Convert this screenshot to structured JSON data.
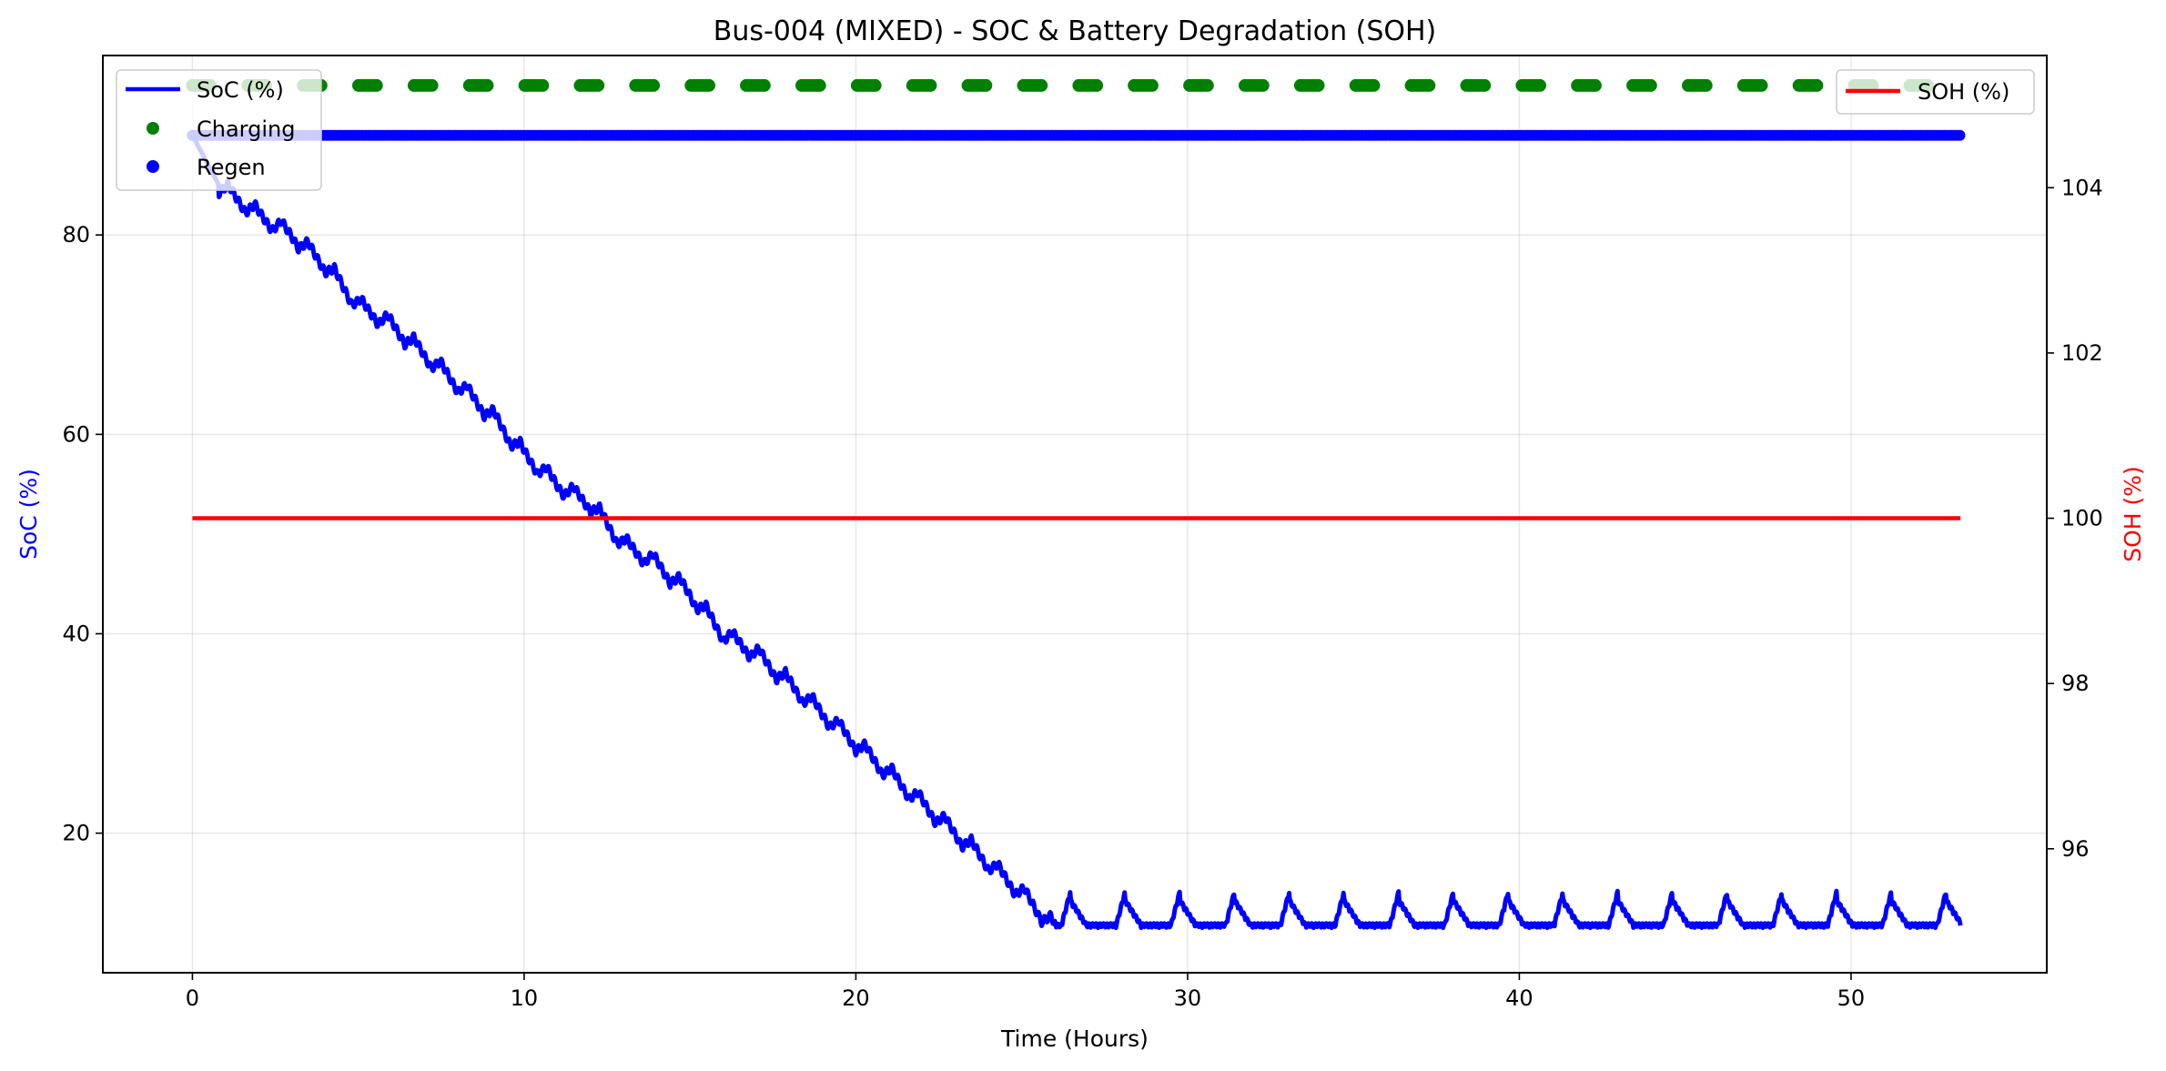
{
  "chart_data": {
    "type": "line",
    "title": "Bus-004 (MIXED) - SOC & Battery Degradation (SOH)",
    "xlabel": "Time (Hours)",
    "ylabel_left": "SoC (%)",
    "ylabel_right": "SOH (%)",
    "xlim": [
      -2.7,
      55.9
    ],
    "ylim_left": [
      6.0,
      98.0
    ],
    "ylim_right": [
      94.5,
      105.6
    ],
    "x_ticks": [
      0,
      10,
      20,
      30,
      40,
      50
    ],
    "y_ticks_left": [
      20,
      40,
      60,
      80
    ],
    "y_ticks_right": [
      96,
      98,
      100,
      102,
      104
    ],
    "grid": true,
    "legend_left_position": "upper left",
    "legend_right_position": "upper right",
    "colors": {
      "soc": "#0000ff",
      "charging": "#008000",
      "regen": "#0000ff",
      "soh": "#ff0000",
      "left_axis_label": "#0000ff",
      "right_axis_label": "#ff0000"
    },
    "series": [
      {
        "name": "SoC (%)",
        "type": "line",
        "axis": "left",
        "color": "#0000ff",
        "x": [
          0,
          0.8,
          2,
          3,
          4,
          5,
          6,
          7,
          8,
          9,
          10,
          11,
          12,
          13,
          14,
          15,
          16,
          17,
          18,
          19,
          20,
          21,
          22,
          23,
          24,
          25,
          26.0,
          53.3
        ],
        "y": [
          90,
          85,
          82,
          80,
          77,
          73,
          71,
          68,
          65,
          62,
          58,
          55,
          53,
          49,
          47,
          44,
          40,
          38,
          35,
          32,
          29,
          26,
          23,
          20,
          17,
          14,
          10.5,
          10.5
        ],
        "oscillation": {
          "amplitude": 1.6,
          "period_hours": 0.8,
          "start": 0.8,
          "end": 26.0
        },
        "plateau_bumps": {
          "level": 10.5,
          "height": 3.3,
          "period_hours": 1.65,
          "start": 26.2,
          "end": 53.3
        }
      },
      {
        "name": "Charging",
        "type": "scatter",
        "axis": "left",
        "color": "#008000",
        "y": 95,
        "x_start": 0,
        "x_end": 52.0,
        "spacing_hours": 1.67,
        "dash_width_hours": 0.55
      },
      {
        "name": "Regen",
        "type": "scatter",
        "axis": "left",
        "color": "#0000ff",
        "y": 90,
        "x_start": 0,
        "x_end": 53.3
      },
      {
        "name": "SOH (%)",
        "type": "line",
        "axis": "right",
        "color": "#ff0000",
        "x": [
          0,
          53.3
        ],
        "y": [
          100,
          100
        ]
      }
    ]
  }
}
